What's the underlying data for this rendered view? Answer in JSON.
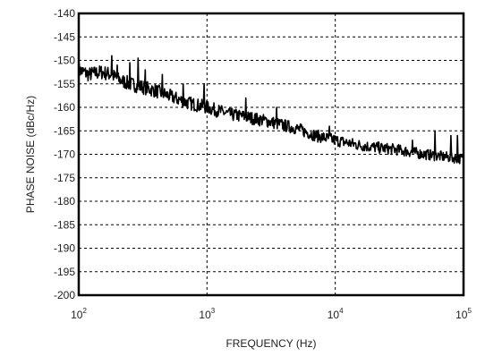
{
  "chart_data": {
    "type": "line",
    "title": "",
    "xlabel": "FREQUENCY (Hz)",
    "ylabel": "PHASE NOISE (dBc/Hz)",
    "x_scale": "log",
    "xlim": [
      100,
      100000
    ],
    "ylim": [
      -200,
      -140
    ],
    "grid": true,
    "x_ticks": [
      {
        "value": 100,
        "base": "10",
        "exp": "2"
      },
      {
        "value": 1000,
        "base": "10",
        "exp": "3"
      },
      {
        "value": 10000,
        "base": "10",
        "exp": "4"
      },
      {
        "value": 100000,
        "base": "10",
        "exp": "5"
      }
    ],
    "y_ticks": [
      "-140",
      "-145",
      "-150",
      "-155",
      "-160",
      "-165",
      "-170",
      "-175",
      "-180",
      "-185",
      "-190",
      "-195",
      "-200"
    ],
    "series": [
      {
        "color": "#000000",
        "x": [
          100,
          120,
          150,
          180,
          200,
          250,
          300,
          400,
          500,
          700,
          1000,
          1500,
          2000,
          3000,
          5000,
          7000,
          10000,
          15000,
          20000,
          30000,
          50000,
          70000,
          100000
        ],
        "y": [
          -152,
          -153,
          -152.5,
          -153,
          -154,
          -155,
          -155.5,
          -156.5,
          -157.5,
          -159,
          -160,
          -161.5,
          -162,
          -163,
          -164.5,
          -166,
          -167,
          -168,
          -168.5,
          -169,
          -170,
          -170.5,
          -171
        ]
      }
    ],
    "spikes": [
      {
        "x": 180,
        "y": -149
      },
      {
        "x": 200,
        "y": -151
      },
      {
        "x": 250,
        "y": -150.5
      },
      {
        "x": 290,
        "y": -149.5
      },
      {
        "x": 330,
        "y": -152
      },
      {
        "x": 450,
        "y": -153
      },
      {
        "x": 650,
        "y": -155
      },
      {
        "x": 950,
        "y": -155
      },
      {
        "x": 2000,
        "y": -158
      },
      {
        "x": 3500,
        "y": -160
      },
      {
        "x": 9000,
        "y": -164
      },
      {
        "x": 40000,
        "y": -167
      },
      {
        "x": 60000,
        "y": -165
      },
      {
        "x": 80000,
        "y": -166
      },
      {
        "x": 90000,
        "y": -166
      }
    ]
  }
}
